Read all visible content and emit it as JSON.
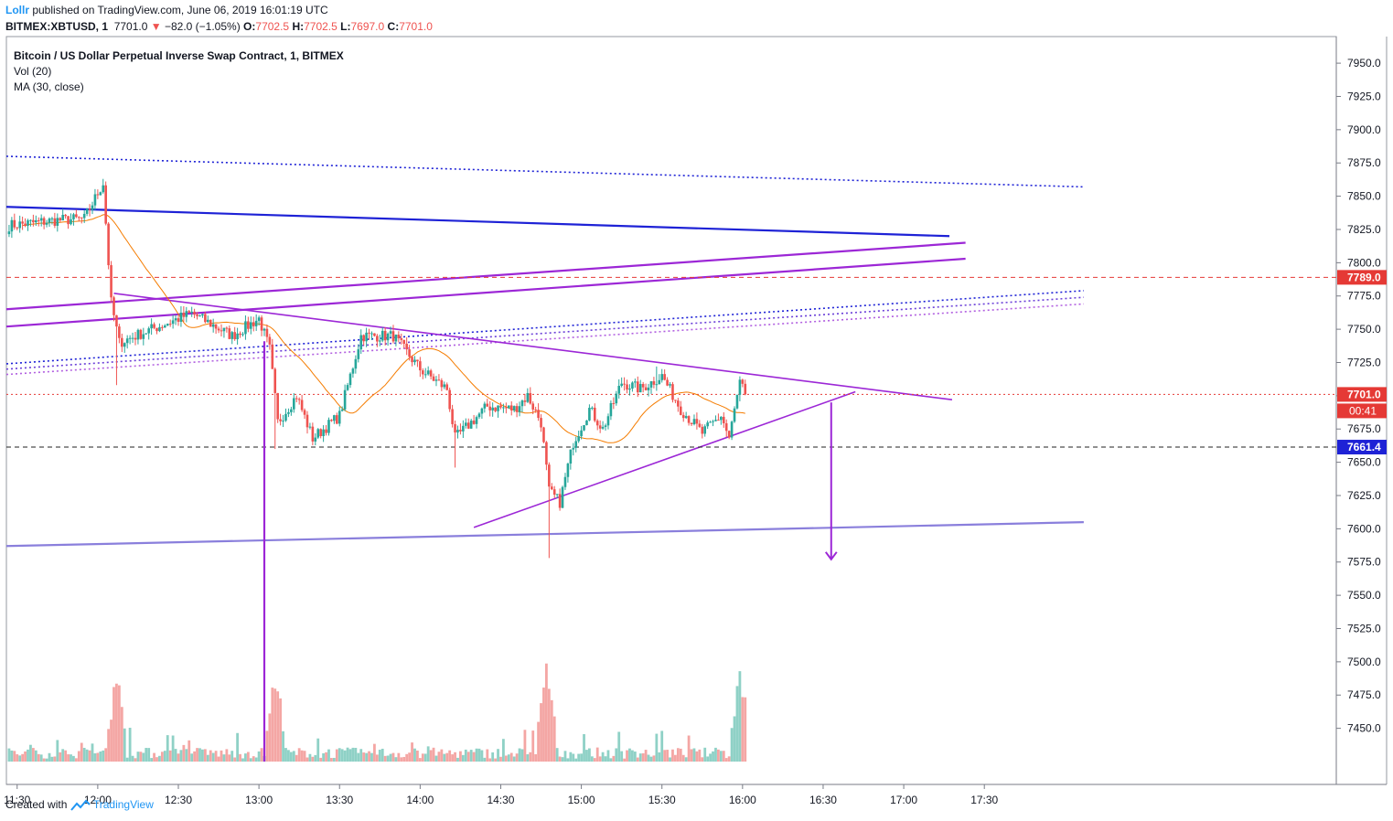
{
  "header": {
    "user": "Lollr",
    "published": " published on TradingView.com, June 06, 2019 16:01:19 UTC",
    "symbol": "BITMEX:XBTUSD, 1",
    "last": "7701.0",
    "change": "−82.0 (−1.05%)",
    "ohlc_o_label": "O:",
    "ohlc_o": "7702.5",
    "ohlc_h_label": "H:",
    "ohlc_h": "7702.5",
    "ohlc_l_label": "L:",
    "ohlc_l": "7697.0",
    "ohlc_c_label": "C:",
    "ohlc_c": "7701.0"
  },
  "legend": {
    "title": "Bitcoin / US Dollar Perpetual Inverse Swap Contract, 1, BITMEX",
    "vol": "Vol (20)",
    "ma": "MA (30, close)"
  },
  "footer": {
    "created": "Created with",
    "brand": "TradingView"
  },
  "colors": {
    "up": "#26a69a",
    "down": "#ef5350",
    "vol_up": "#8fd1c6",
    "vol_down": "#f4a6a4",
    "ma": "#f57c00",
    "blue": "#1e22d6",
    "purple": "#9c27d6",
    "lavender": "#8a7fdc",
    "red_label": "#e53935"
  },
  "chart_data": {
    "type": "candlestick",
    "title": "Bitcoin / US Dollar Perpetual Inverse Swap Contract, 1, BITMEX",
    "ylim": [
      7425,
      7970
    ],
    "y_ticks": [
      7950,
      7925,
      7900,
      7875,
      7850,
      7825,
      7800,
      7775,
      7750,
      7725,
      7700,
      7675,
      7650,
      7625,
      7600,
      7575,
      7550,
      7525,
      7500,
      7475,
      7450
    ],
    "x_ticks": [
      "11:30",
      "12:00",
      "12:30",
      "13:00",
      "13:30",
      "14:00",
      "14:30",
      "15:00",
      "15:30",
      "16:00",
      "16:30",
      "17:00",
      "17:30"
    ],
    "x_range_minutes": [
      -34,
      461
    ],
    "price_labels": [
      {
        "value": 7789.0,
        "label": "7789.0",
        "color": "#e53935"
      },
      {
        "value": 7701.0,
        "label": "7701.0",
        "color": "#e53935"
      },
      {
        "value": 7661.4,
        "label": "7661.4",
        "color": "#1e22d6"
      }
    ],
    "countdown": "00:41",
    "volume_peaks": [
      {
        "time": "12:07",
        "direction": "down"
      },
      {
        "time": "13:06",
        "direction": "down"
      },
      {
        "time": "14:47",
        "direction": "down"
      },
      {
        "time": "15:59",
        "direction": "up"
      }
    ],
    "anchors": [
      {
        "time": "11:27",
        "price": 7828
      },
      {
        "time": "11:45",
        "price": 7832
      },
      {
        "time": "11:55",
        "price": 7833
      },
      {
        "time": "12:02",
        "price": 7860
      },
      {
        "time": "12:05",
        "price": 7770
      },
      {
        "time": "12:08",
        "price": 7740
      },
      {
        "time": "12:20",
        "price": 7750
      },
      {
        "time": "12:35",
        "price": 7762
      },
      {
        "time": "12:50",
        "price": 7745
      },
      {
        "time": "13:00",
        "price": 7758
      },
      {
        "time": "13:04",
        "price": 7735
      },
      {
        "time": "13:07",
        "price": 7680
      },
      {
        "time": "13:14",
        "price": 7700
      },
      {
        "time": "13:20",
        "price": 7668
      },
      {
        "time": "13:30",
        "price": 7685
      },
      {
        "time": "13:38",
        "price": 7745
      },
      {
        "time": "13:50",
        "price": 7745
      },
      {
        "time": "14:00",
        "price": 7720
      },
      {
        "time": "14:10",
        "price": 7705
      },
      {
        "time": "14:13",
        "price": 7668
      },
      {
        "time": "14:25",
        "price": 7692
      },
      {
        "time": "14:35",
        "price": 7690
      },
      {
        "time": "14:40",
        "price": 7700
      },
      {
        "time": "14:45",
        "price": 7680
      },
      {
        "time": "14:48",
        "price": 7628
      },
      {
        "time": "14:52",
        "price": 7620
      },
      {
        "time": "14:57",
        "price": 7665
      },
      {
        "time": "15:03",
        "price": 7690
      },
      {
        "time": "15:08",
        "price": 7675
      },
      {
        "time": "15:15",
        "price": 7710
      },
      {
        "time": "15:22",
        "price": 7705
      },
      {
        "time": "15:30",
        "price": 7715
      },
      {
        "time": "15:37",
        "price": 7690
      },
      {
        "time": "15:45",
        "price": 7672
      },
      {
        "time": "15:52",
        "price": 7685
      },
      {
        "time": "15:55",
        "price": 7668
      },
      {
        "time": "15:59",
        "price": 7710
      },
      {
        "time": "16:01",
        "price": 7701
      }
    ],
    "ma_period": 30,
    "drawings": [
      {
        "name": "blue-resistance-line",
        "color": "#1e22d6",
        "style": "solid",
        "from": {
          "time": "11:26",
          "price": 7842
        },
        "to": {
          "time": "17:17",
          "price": 7820
        }
      },
      {
        "name": "blue-dotted-upper-line",
        "color": "#1e22d6",
        "style": "dotted",
        "from": {
          "time": "11:26",
          "price": 7880
        },
        "to": {
          "time": "18:07",
          "price": 7857
        }
      },
      {
        "name": "purple-channel-upper",
        "color": "#9c27d6",
        "style": "solid",
        "from": {
          "time": "11:26",
          "price": 7765
        },
        "to": {
          "time": "17:23",
          "price": 7815
        }
      },
      {
        "name": "purple-channel-lower",
        "color": "#9c27d6",
        "style": "solid",
        "from": {
          "time": "11:26",
          "price": 7752
        },
        "to": {
          "time": "17:23",
          "price": 7803
        }
      },
      {
        "name": "blue-dotted-lower-line",
        "color": "#1e22d6",
        "style": "dotted",
        "from": {
          "time": "11:26",
          "price": 7724
        },
        "to": {
          "time": "18:07",
          "price": 7779
        }
      },
      {
        "name": "blue-dotted-lower-line-2",
        "color": "#6a3fd8",
        "style": "dotted",
        "from": {
          "time": "11:26",
          "price": 7720
        },
        "to": {
          "time": "18:07",
          "price": 7774
        }
      },
      {
        "name": "purple-dotted-lower-line",
        "color": "#b15fe0",
        "style": "dotted",
        "from": {
          "time": "11:26",
          "price": 7716
        },
        "to": {
          "time": "18:07",
          "price": 7769
        }
      },
      {
        "name": "triangle-descending-side",
        "color": "#9c27d6",
        "style": "solid",
        "from": {
          "time": "12:06",
          "price": 7777
        },
        "to": {
          "time": "17:18",
          "price": 7697
        }
      },
      {
        "name": "triangle-ascending-side",
        "color": "#9c27d6",
        "style": "solid",
        "from": {
          "time": "14:20",
          "price": 7601
        },
        "to": {
          "time": "16:42",
          "price": 7703
        }
      },
      {
        "name": "lavender-support-line",
        "color": "#8a7fdc",
        "style": "solid",
        "from": {
          "time": "11:26",
          "price": 7587
        },
        "to": {
          "time": "18:07",
          "price": 7605
        }
      },
      {
        "name": "red-dotted-level-7789",
        "color": "#e53935",
        "style": "dashed",
        "price": 7789
      },
      {
        "name": "red-dotted-level-7701",
        "color": "#e53935",
        "style": "dotted",
        "price": 7701
      },
      {
        "name": "black-dashed-level-7661",
        "color": "#222222",
        "style": "dashed",
        "price": 7661.4
      },
      {
        "name": "vertical-purple-line",
        "color": "#9c27d6",
        "style": "solid",
        "time": "13:02",
        "from_price": 7741,
        "to_price": 7425
      },
      {
        "name": "target-arrow",
        "color": "#9c27d6",
        "style": "arrow",
        "time": "16:33",
        "from_price": 7695,
        "to_price": 7577
      }
    ]
  }
}
